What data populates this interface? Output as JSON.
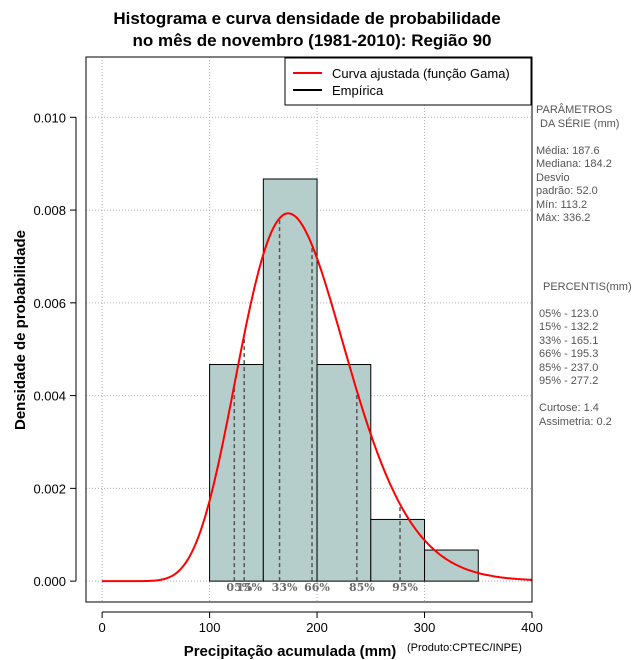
{
  "chart_data": {
    "type": "histogram",
    "title": [
      "Histograma e curva densidade de probabilidade",
      "no mês de novembro (1981-2010): Região 90"
    ],
    "xlabel": "Precipitação acumulada (mm)",
    "ylabel": "Densidade de probabilidade",
    "credit": "(Produto:CPTEC/INPE)",
    "xlim": [
      -15,
      400
    ],
    "ylim": [
      -0.00045,
      0.0113
    ],
    "x_ticks": [
      0,
      100,
      200,
      300,
      400
    ],
    "y_ticks": [
      0.0,
      0.002,
      0.004,
      0.006,
      0.008,
      0.01
    ],
    "x_tick_labels": [
      "0",
      "100",
      "200",
      "300",
      "400"
    ],
    "y_tick_labels": [
      "0.000",
      "0.002",
      "0.004",
      "0.006",
      "0.008",
      "0.010"
    ],
    "grid": true,
    "bins": [
      {
        "start": 100,
        "end": 150,
        "density": 0.00467
      },
      {
        "start": 150,
        "end": 200,
        "density": 0.00867
      },
      {
        "start": 200,
        "end": 250,
        "density": 0.00467
      },
      {
        "start": 250,
        "end": 300,
        "density": 0.00133
      },
      {
        "start": 300,
        "end": 350,
        "density": 0.00067
      }
    ],
    "fitted_curve": {
      "name": "Curva ajustada (função Gama)",
      "mean": 187.6,
      "sd": 52.0,
      "x_range": [
        0,
        400
      ]
    },
    "percentile_lines": [
      {
        "label": "05%",
        "value": 123.0
      },
      {
        "label": "15%",
        "value": 132.2
      },
      {
        "label": "33%",
        "value": 165.1
      },
      {
        "label": "66%",
        "value": 195.3
      },
      {
        "label": "85%",
        "value": 237.0
      },
      {
        "label": "95%",
        "value": 277.2
      }
    ],
    "legend": {
      "position": "top-right",
      "entries": [
        {
          "label": "Curva ajustada (função Gama)",
          "color": "#ff0000"
        },
        {
          "label": "Empírica",
          "color": "#000000"
        }
      ]
    },
    "colors": {
      "bar_fill": "#b5cdcb",
      "curve": "#ff0000",
      "grid": "#b0b0b0"
    }
  },
  "stats_panel": {
    "params_header": [
      "PARÂMETROS",
      "DA SÉRIE (mm)"
    ],
    "params": [
      "Média:  187.6",
      "Mediana:  184.2",
      "Desvio",
      "padrão:  52.0",
      "Mín:  113.2",
      "Máx:  336.2"
    ],
    "pct_header": "PERCENTIS(mm)",
    "percentiles": [
      "05% -  123.0",
      "15% -  132.2",
      "33% -  165.1",
      "66% -  195.3",
      "85% -  237.0",
      "95% -  277.2"
    ],
    "shape": [
      "Curtose:  1.4",
      "Assimetria:  0.2"
    ]
  }
}
